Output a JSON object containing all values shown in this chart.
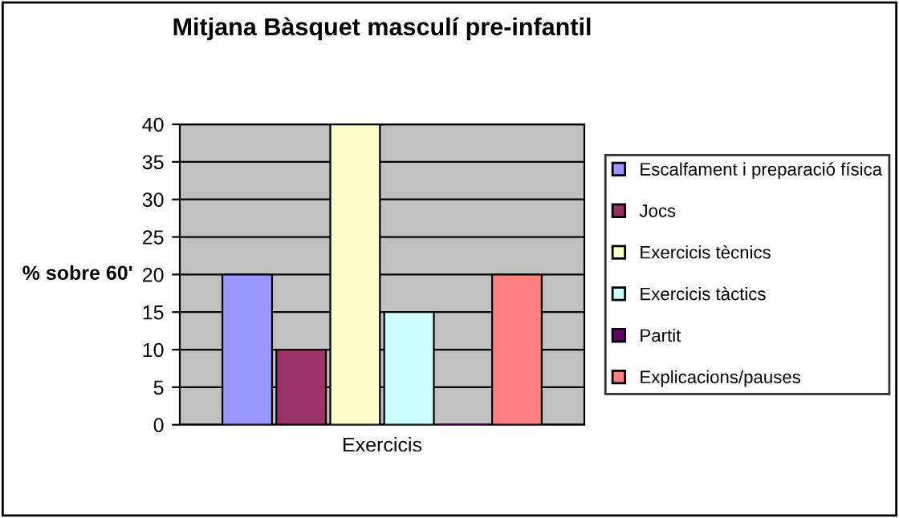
{
  "chart_data": {
    "type": "bar",
    "title": "Mitjana Bàsquet masculí pre-infantil",
    "xlabel": "Exercicis",
    "ylabel": "% sobre 60'",
    "categories": [
      null
    ],
    "series": [
      {
        "name": "Escalfament i preparació física",
        "color": "#9999ff",
        "values": [
          20
        ]
      },
      {
        "name": "Jocs",
        "color": "#993366",
        "values": [
          10
        ]
      },
      {
        "name": "Exercicis tècnics",
        "color": "#ffffcc",
        "values": [
          40
        ]
      },
      {
        "name": "Exercicis tàctics",
        "color": "#ccffff",
        "values": [
          15
        ]
      },
      {
        "name": "Partit",
        "color": "#660066",
        "values": [
          0
        ]
      },
      {
        "name": "Explicacions/pauses",
        "color": "#ff8080",
        "values": [
          20
        ]
      }
    ],
    "ylim": [
      0,
      40
    ],
    "yticks": [
      0,
      5,
      10,
      15,
      20,
      25,
      30,
      35,
      40
    ],
    "grid": "y",
    "legend": "right"
  }
}
